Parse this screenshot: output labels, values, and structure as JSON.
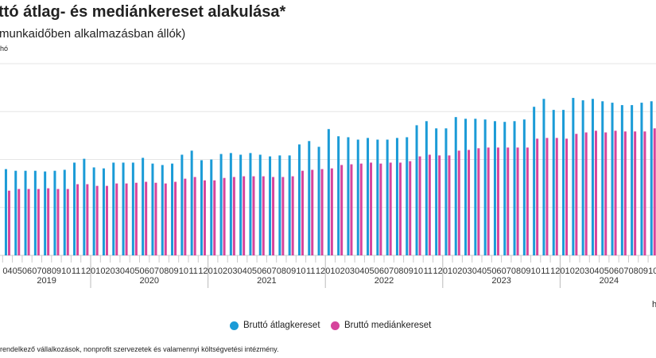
{
  "header": {
    "title": "ttó átlag- és mediánkereset alakulása*",
    "subtitle": "munkaidőben alkalmazásban állók)",
    "unit": "hó",
    "x_unit": "h"
  },
  "footnote": "rendelkező vállalkozások, nonprofit szervezetek és valamennyi költségvetési intézmény.",
  "chart_data": {
    "type": "bar",
    "title": "",
    "xlabel": "",
    "ylabel": "",
    "ylim": [
      0,
      800
    ],
    "grid": true,
    "legend_position": "bottom",
    "years": [
      {
        "label": "2019",
        "months": [
          "04",
          "05",
          "06",
          "07",
          "08",
          "09",
          "10",
          "11",
          "12"
        ]
      },
      {
        "label": "2020",
        "months": [
          "01",
          "02",
          "03",
          "04",
          "05",
          "06",
          "07",
          "08",
          "09",
          "10",
          "11",
          "12"
        ]
      },
      {
        "label": "2021",
        "months": [
          "01",
          "02",
          "03",
          "04",
          "05",
          "06",
          "07",
          "08",
          "09",
          "10",
          "11",
          "12"
        ]
      },
      {
        "label": "2022",
        "months": [
          "01",
          "02",
          "03",
          "04",
          "05",
          "06",
          "07",
          "08",
          "09",
          "10",
          "11",
          "12"
        ]
      },
      {
        "label": "2023",
        "months": [
          "01",
          "02",
          "03",
          "04",
          "05",
          "06",
          "07",
          "08",
          "09",
          "10",
          "11",
          "12"
        ]
      },
      {
        "label": "2024",
        "months": [
          "01",
          "02",
          "03",
          "04",
          "05",
          "06",
          "07",
          "08",
          "09",
          "10"
        ]
      }
    ],
    "series": [
      {
        "name": "Bruttó átlagkereset",
        "color": "#1b9bd7",
        "values": [
          360,
          353,
          353,
          353,
          350,
          353,
          357,
          387,
          403,
          367,
          363,
          387,
          387,
          387,
          407,
          383,
          377,
          383,
          420,
          437,
          397,
          400,
          423,
          427,
          420,
          427,
          420,
          413,
          417,
          417,
          463,
          477,
          453,
          527,
          497,
          493,
          483,
          490,
          483,
          483,
          490,
          493,
          543,
          560,
          530,
          530,
          577,
          570,
          570,
          567,
          560,
          557,
          560,
          567,
          620,
          653,
          607,
          607,
          657,
          647,
          653,
          643,
          637,
          627,
          627,
          637,
          643
        ]
      },
      {
        "name": "Bruttó mediánkereset",
        "color": "#d6449c",
        "values": [
          270,
          277,
          277,
          277,
          280,
          277,
          277,
          297,
          297,
          290,
          290,
          300,
          300,
          303,
          307,
          303,
          300,
          307,
          320,
          327,
          313,
          313,
          323,
          327,
          330,
          330,
          330,
          327,
          327,
          330,
          353,
          357,
          360,
          363,
          377,
          380,
          383,
          387,
          383,
          387,
          387,
          393,
          413,
          420,
          417,
          417,
          437,
          440,
          447,
          450,
          450,
          450,
          450,
          450,
          487,
          490,
          490,
          487,
          507,
          513,
          520,
          513,
          520,
          517,
          517,
          517,
          530
        ]
      }
    ]
  }
}
